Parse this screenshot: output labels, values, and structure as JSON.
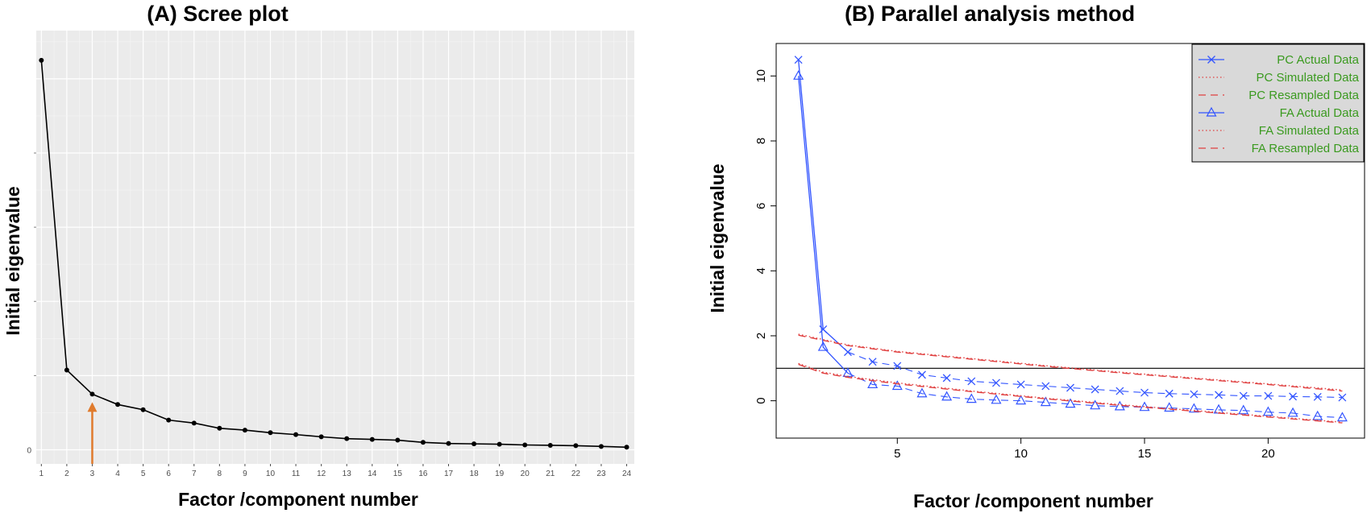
{
  "chart_data": [
    {
      "type": "line",
      "title": "(A) Scree plot",
      "xlabel": "Factor /component number",
      "ylabel": "Initial eigenvalue",
      "x": [
        1,
        2,
        3,
        4,
        5,
        6,
        7,
        8,
        9,
        10,
        11,
        12,
        13,
        14,
        15,
        16,
        17,
        18,
        19,
        20,
        21,
        22,
        23,
        24
      ],
      "y_tick_labels": [
        "0"
      ],
      "y": [
        10.5,
        2.15,
        1.5,
        1.22,
        1.08,
        0.8,
        0.72,
        0.58,
        0.53,
        0.46,
        0.41,
        0.35,
        0.3,
        0.28,
        0.26,
        0.2,
        0.17,
        0.16,
        0.15,
        0.13,
        0.12,
        0.11,
        0.09,
        0.07
      ],
      "xlim": [
        0.8,
        24.3
      ],
      "ylim": [
        -0.38,
        11.3
      ],
      "grid": true,
      "background": "#ebebeb",
      "line_color": "#000000",
      "annotation": {
        "type": "arrow",
        "at_x": 3,
        "color": "#e07b2d"
      }
    },
    {
      "type": "line",
      "title": "(B) Parallel analysis method",
      "xlabel": "Factor /component number",
      "ylabel": "Initial eigenvalue",
      "x_ticks": [
        5,
        10,
        15,
        20
      ],
      "y_ticks": [
        0,
        2,
        4,
        6,
        8,
        10
      ],
      "xlim": [
        0.1,
        23.9
      ],
      "ylim": [
        -1.15,
        11.0
      ],
      "reference_line": 1,
      "legend_position": "top-right",
      "legend_background": "#d9d9d9",
      "series": [
        {
          "name": "PC  Actual Data",
          "color": "#3355ff",
          "marker": "x",
          "style": "solid-then-dashed",
          "x": [
            1,
            2,
            3,
            4,
            5,
            6,
            7,
            8,
            9,
            10,
            11,
            12,
            13,
            14,
            15,
            16,
            17,
            18,
            19,
            20,
            21,
            22,
            23
          ],
          "values": [
            10.5,
            2.2,
            1.5,
            1.2,
            1.07,
            0.8,
            0.7,
            0.6,
            0.55,
            0.5,
            0.45,
            0.4,
            0.35,
            0.3,
            0.25,
            0.22,
            0.2,
            0.18,
            0.15,
            0.15,
            0.13,
            0.12,
            0.1
          ]
        },
        {
          "name": "PC  Simulated Data",
          "color": "#e04040",
          "style": "dotted",
          "x": [
            1,
            3,
            5,
            8,
            11,
            14,
            17,
            20,
            23
          ],
          "values": [
            2.05,
            1.72,
            1.52,
            1.3,
            1.08,
            0.88,
            0.7,
            0.52,
            0.33
          ]
        },
        {
          "name": "PC  Resampled Data",
          "color": "#e04040",
          "style": "dashed",
          "x": [
            1,
            3,
            5,
            8,
            11,
            14,
            17,
            20,
            23
          ],
          "values": [
            2.02,
            1.7,
            1.5,
            1.28,
            1.06,
            0.86,
            0.68,
            0.5,
            0.3
          ]
        },
        {
          "name": "FA  Actual Data",
          "color": "#3355ff",
          "marker": "triangle",
          "style": "solid-then-dashed",
          "x": [
            1,
            2,
            3,
            4,
            5,
            6,
            7,
            8,
            9,
            10,
            11,
            12,
            13,
            14,
            15,
            16,
            17,
            18,
            19,
            20,
            21,
            22,
            23
          ],
          "values": [
            10.0,
            1.65,
            0.85,
            0.5,
            0.45,
            0.22,
            0.12,
            0.05,
            0.02,
            0.0,
            -0.05,
            -0.1,
            -0.15,
            -0.18,
            -0.2,
            -0.22,
            -0.25,
            -0.28,
            -0.3,
            -0.35,
            -0.38,
            -0.48,
            -0.52
          ]
        },
        {
          "name": "FA  Simulated Data",
          "color": "#e04040",
          "style": "dotted",
          "x": [
            1,
            2,
            3,
            5,
            8,
            11,
            14,
            17,
            20,
            23
          ],
          "values": [
            1.15,
            0.88,
            0.75,
            0.55,
            0.3,
            0.08,
            -0.12,
            -0.3,
            -0.48,
            -0.66
          ]
        },
        {
          "name": "FA  Resampled Data",
          "color": "#e04040",
          "style": "dashed",
          "x": [
            1,
            2,
            3,
            5,
            8,
            11,
            14,
            17,
            20,
            23
          ],
          "values": [
            1.12,
            0.85,
            0.72,
            0.52,
            0.28,
            0.06,
            -0.14,
            -0.32,
            -0.5,
            -0.68
          ]
        }
      ]
    }
  ]
}
